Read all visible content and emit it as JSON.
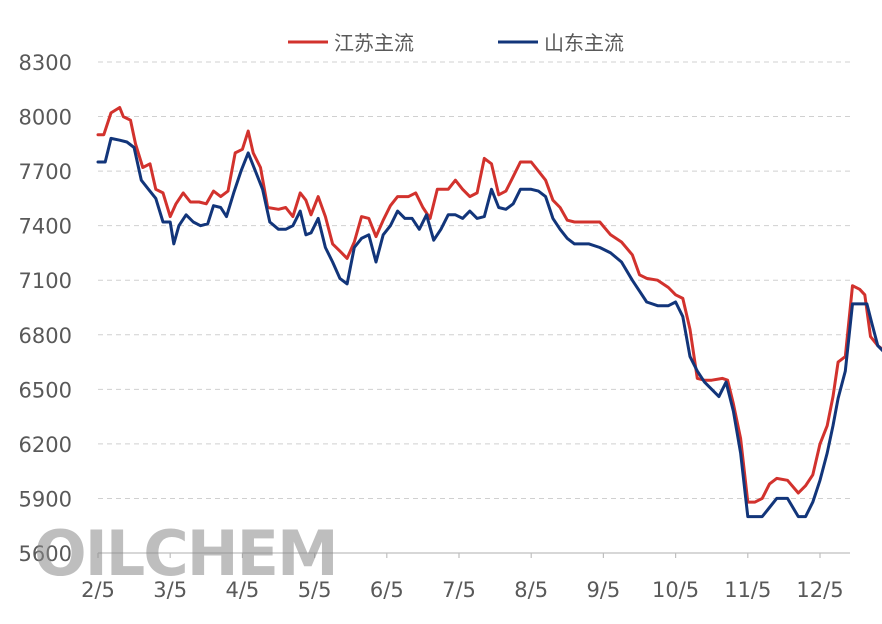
{
  "chart_data": {
    "type": "line",
    "title": "",
    "xlabel": "",
    "ylabel": "",
    "ylim": [
      5600,
      8300
    ],
    "yticks": [
      5600,
      5900,
      6200,
      6500,
      6800,
      7100,
      7400,
      7700,
      8000,
      8300
    ],
    "x_tick_labels": [
      "2/5",
      "3/5",
      "4/5",
      "5/5",
      "6/5",
      "7/5",
      "8/5",
      "9/5",
      "10/5",
      "11/5",
      "12/5"
    ],
    "x_unit": "month index (2/5 = 0, 12/5 = 10)",
    "legend_position": "top-center",
    "grid": true,
    "series": [
      {
        "name": "江苏主流",
        "color": "#d2322d",
        "points": [
          [
            0.0,
            7900
          ],
          [
            0.08,
            7900
          ],
          [
            0.18,
            8020
          ],
          [
            0.3,
            8050
          ],
          [
            0.35,
            8000
          ],
          [
            0.45,
            7980
          ],
          [
            0.52,
            7850
          ],
          [
            0.62,
            7720
          ],
          [
            0.72,
            7740
          ],
          [
            0.8,
            7600
          ],
          [
            0.9,
            7580
          ],
          [
            1.0,
            7450
          ],
          [
            1.08,
            7520
          ],
          [
            1.18,
            7580
          ],
          [
            1.28,
            7530
          ],
          [
            1.4,
            7530
          ],
          [
            1.5,
            7520
          ],
          [
            1.6,
            7590
          ],
          [
            1.7,
            7560
          ],
          [
            1.8,
            7590
          ],
          [
            1.9,
            7800
          ],
          [
            2.0,
            7820
          ],
          [
            2.08,
            7920
          ],
          [
            2.15,
            7800
          ],
          [
            2.25,
            7720
          ],
          [
            2.35,
            7500
          ],
          [
            2.5,
            7490
          ],
          [
            2.6,
            7500
          ],
          [
            2.7,
            7450
          ],
          [
            2.8,
            7580
          ],
          [
            2.88,
            7540
          ],
          [
            2.95,
            7460
          ],
          [
            3.05,
            7560
          ],
          [
            3.15,
            7450
          ],
          [
            3.25,
            7300
          ],
          [
            3.35,
            7260
          ],
          [
            3.45,
            7220
          ],
          [
            3.55,
            7310
          ],
          [
            3.65,
            7450
          ],
          [
            3.75,
            7440
          ],
          [
            3.85,
            7340
          ],
          [
            3.95,
            7430
          ],
          [
            4.05,
            7510
          ],
          [
            4.15,
            7560
          ],
          [
            4.3,
            7560
          ],
          [
            4.4,
            7580
          ],
          [
            4.5,
            7500
          ],
          [
            4.6,
            7440
          ],
          [
            4.7,
            7600
          ],
          [
            4.85,
            7600
          ],
          [
            4.95,
            7650
          ],
          [
            5.05,
            7600
          ],
          [
            5.15,
            7560
          ],
          [
            5.25,
            7580
          ],
          [
            5.35,
            7770
          ],
          [
            5.45,
            7740
          ],
          [
            5.55,
            7570
          ],
          [
            5.65,
            7590
          ],
          [
            5.75,
            7670
          ],
          [
            5.85,
            7750
          ],
          [
            6.0,
            7750
          ],
          [
            6.1,
            7700
          ],
          [
            6.2,
            7650
          ],
          [
            6.3,
            7540
          ],
          [
            6.4,
            7500
          ],
          [
            6.5,
            7430
          ],
          [
            6.6,
            7420
          ],
          [
            6.8,
            7420
          ],
          [
            6.95,
            7420
          ],
          [
            7.1,
            7350
          ],
          [
            7.25,
            7310
          ],
          [
            7.4,
            7240
          ],
          [
            7.5,
            7130
          ],
          [
            7.6,
            7110
          ],
          [
            7.75,
            7100
          ],
          [
            7.9,
            7060
          ],
          [
            8.0,
            7020
          ],
          [
            8.1,
            7000
          ],
          [
            8.2,
            6830
          ],
          [
            8.3,
            6560
          ],
          [
            8.4,
            6550
          ],
          [
            8.5,
            6550
          ],
          [
            8.65,
            6560
          ],
          [
            8.72,
            6550
          ],
          [
            8.8,
            6420
          ],
          [
            8.9,
            6230
          ],
          [
            9.0,
            5880
          ],
          [
            9.1,
            5880
          ],
          [
            9.2,
            5900
          ],
          [
            9.3,
            5980
          ],
          [
            9.4,
            6010
          ],
          [
            9.55,
            6000
          ],
          [
            9.7,
            5930
          ],
          [
            9.8,
            5970
          ],
          [
            9.9,
            6030
          ],
          [
            10.0,
            6200
          ],
          [
            10.1,
            6300
          ],
          [
            10.18,
            6460
          ],
          [
            10.25,
            6650
          ],
          [
            10.35,
            6680
          ],
          [
            10.45,
            7070
          ],
          [
            10.55,
            7050
          ],
          [
            10.62,
            7020
          ],
          [
            10.7,
            6790
          ],
          [
            10.8,
            6740
          ],
          [
            10.9,
            6710
          ]
        ]
      },
      {
        "name": "山东主流",
        "color": "#12357a",
        "points": [
          [
            0.0,
            7750
          ],
          [
            0.1,
            7750
          ],
          [
            0.18,
            7880
          ],
          [
            0.3,
            7870
          ],
          [
            0.4,
            7860
          ],
          [
            0.5,
            7830
          ],
          [
            0.6,
            7650
          ],
          [
            0.7,
            7600
          ],
          [
            0.8,
            7550
          ],
          [
            0.9,
            7420
          ],
          [
            1.0,
            7420
          ],
          [
            1.05,
            7300
          ],
          [
            1.12,
            7400
          ],
          [
            1.22,
            7460
          ],
          [
            1.32,
            7420
          ],
          [
            1.42,
            7400
          ],
          [
            1.52,
            7410
          ],
          [
            1.6,
            7510
          ],
          [
            1.7,
            7500
          ],
          [
            1.78,
            7450
          ],
          [
            1.88,
            7580
          ],
          [
            1.98,
            7700
          ],
          [
            2.08,
            7800
          ],
          [
            2.18,
            7700
          ],
          [
            2.28,
            7600
          ],
          [
            2.38,
            7420
          ],
          [
            2.5,
            7380
          ],
          [
            2.6,
            7380
          ],
          [
            2.7,
            7400
          ],
          [
            2.8,
            7480
          ],
          [
            2.88,
            7350
          ],
          [
            2.95,
            7360
          ],
          [
            3.05,
            7440
          ],
          [
            3.15,
            7280
          ],
          [
            3.25,
            7200
          ],
          [
            3.35,
            7110
          ],
          [
            3.45,
            7080
          ],
          [
            3.55,
            7280
          ],
          [
            3.65,
            7330
          ],
          [
            3.75,
            7350
          ],
          [
            3.85,
            7200
          ],
          [
            3.95,
            7350
          ],
          [
            4.05,
            7400
          ],
          [
            4.15,
            7480
          ],
          [
            4.25,
            7440
          ],
          [
            4.35,
            7440
          ],
          [
            4.45,
            7380
          ],
          [
            4.55,
            7460
          ],
          [
            4.65,
            7320
          ],
          [
            4.75,
            7380
          ],
          [
            4.85,
            7460
          ],
          [
            4.95,
            7460
          ],
          [
            5.05,
            7440
          ],
          [
            5.15,
            7480
          ],
          [
            5.25,
            7440
          ],
          [
            5.35,
            7450
          ],
          [
            5.45,
            7600
          ],
          [
            5.55,
            7500
          ],
          [
            5.65,
            7490
          ],
          [
            5.75,
            7520
          ],
          [
            5.85,
            7600
          ],
          [
            6.0,
            7600
          ],
          [
            6.1,
            7590
          ],
          [
            6.2,
            7560
          ],
          [
            6.3,
            7440
          ],
          [
            6.4,
            7380
          ],
          [
            6.5,
            7330
          ],
          [
            6.6,
            7300
          ],
          [
            6.8,
            7300
          ],
          [
            6.95,
            7280
          ],
          [
            7.1,
            7250
          ],
          [
            7.25,
            7200
          ],
          [
            7.4,
            7100
          ],
          [
            7.5,
            7040
          ],
          [
            7.6,
            6980
          ],
          [
            7.75,
            6960
          ],
          [
            7.9,
            6960
          ],
          [
            8.0,
            6980
          ],
          [
            8.1,
            6900
          ],
          [
            8.2,
            6680
          ],
          [
            8.3,
            6600
          ],
          [
            8.4,
            6540
          ],
          [
            8.5,
            6500
          ],
          [
            8.6,
            6460
          ],
          [
            8.7,
            6540
          ],
          [
            8.8,
            6380
          ],
          [
            8.9,
            6150
          ],
          [
            9.0,
            5800
          ],
          [
            9.1,
            5800
          ],
          [
            9.2,
            5800
          ],
          [
            9.3,
            5850
          ],
          [
            9.4,
            5900
          ],
          [
            9.55,
            5900
          ],
          [
            9.7,
            5800
          ],
          [
            9.8,
            5800
          ],
          [
            9.9,
            5880
          ],
          [
            10.0,
            6000
          ],
          [
            10.1,
            6150
          ],
          [
            10.18,
            6300
          ],
          [
            10.25,
            6450
          ],
          [
            10.35,
            6600
          ],
          [
            10.45,
            6970
          ],
          [
            10.55,
            6970
          ],
          [
            10.65,
            6970
          ],
          [
            10.72,
            6860
          ],
          [
            10.8,
            6740
          ],
          [
            10.9,
            6700
          ]
        ]
      }
    ]
  },
  "watermark": "OILCHEM"
}
